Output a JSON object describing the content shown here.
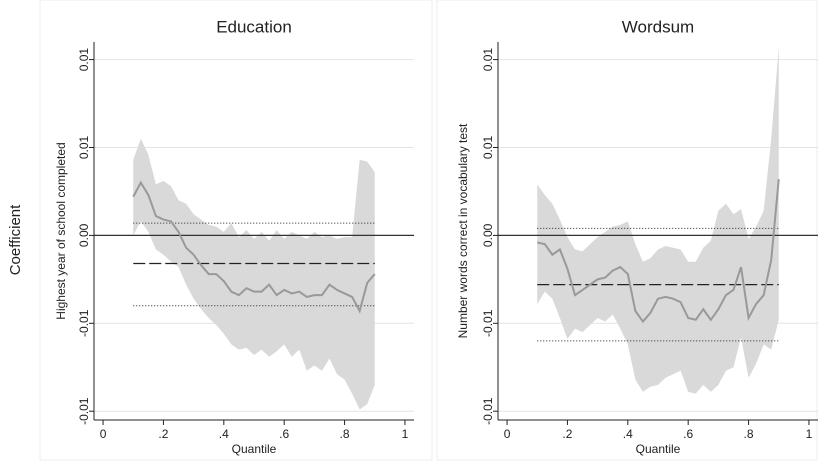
{
  "ylabel": "Coefficient",
  "chart_data": [
    {
      "type": "line",
      "title": "Education",
      "ylabel": "Highest year of school completed",
      "xlabel": "Quantile",
      "xlim": [
        -0.03,
        1.03
      ],
      "ylim": [
        -0.0105,
        0.011
      ],
      "xticks": [
        0,
        {
          "value": 0.2,
          "label": ".2"
        },
        {
          "value": 0.4,
          "label": ".4"
        },
        {
          "value": 0.6,
          "label": ".6"
        },
        {
          "value": 0.8,
          "label": ".8"
        },
        1
      ],
      "yticks": [
        -0.01,
        {
          "value": -0.005,
          "label": "-0.01"
        },
        {
          "value": 0,
          "label": "0.00"
        },
        {
          "value": 0.005,
          "label": "0.01"
        },
        0.01
      ],
      "grid": true,
      "refline": 0,
      "x": [
        0.1,
        0.125,
        0.15,
        0.175,
        0.2,
        0.225,
        0.25,
        0.275,
        0.3,
        0.325,
        0.35,
        0.375,
        0.4,
        0.425,
        0.45,
        0.475,
        0.5,
        0.525,
        0.55,
        0.575,
        0.6,
        0.625,
        0.65,
        0.675,
        0.7,
        0.725,
        0.75,
        0.775,
        0.8,
        0.825,
        0.85,
        0.875,
        0.9
      ],
      "band": {
        "color": "#d9d9d9",
        "upper": [
          0.0043,
          0.0055,
          0.0046,
          0.0029,
          0.0031,
          0.0028,
          0.002,
          0.0018,
          0.0012,
          0.0009,
          0.0006,
          0.0005,
          0.0002,
          0.0007,
          -0.0001,
          0.0003,
          -0.0002,
          0.0002,
          -0.0003,
          0.0003,
          -0.0002,
          0.0002,
          0,
          -0.0002,
          0.0002,
          -0.0001,
          0,
          -0.0002,
          -0.0001,
          -0.0001,
          0.0043,
          0.0042,
          0.0036
        ],
        "lower": [
          0,
          0.0008,
          0.0002,
          -0.0008,
          -0.0011,
          -0.0015,
          -0.0018,
          -0.0028,
          -0.0036,
          -0.0042,
          -0.0047,
          -0.0051,
          -0.0056,
          -0.0062,
          -0.0065,
          -0.0064,
          -0.0068,
          -0.0065,
          -0.0069,
          -0.0066,
          -0.0062,
          -0.0069,
          -0.0065,
          -0.0077,
          -0.0074,
          -0.0077,
          -0.007,
          -0.0079,
          -0.0082,
          -0.009,
          -0.0099,
          -0.0096,
          -0.0085
        ]
      },
      "series": [
        {
          "color": "#999999",
          "values": [
            0.0022,
            0.003,
            0.0023,
            0.0011,
            0.0009,
            0.0008,
            0.0002,
            -0.0007,
            -0.0011,
            -0.0017,
            -0.0022,
            -0.0022,
            -0.0026,
            -0.0032,
            -0.0034,
            -0.003,
            -0.0032,
            -0.0032,
            -0.0028,
            -0.0034,
            -0.0031,
            -0.0033,
            -0.0032,
            -0.0035,
            -0.0034,
            -0.0034,
            -0.0028,
            -0.0031,
            -0.0033,
            -0.0035,
            -0.0043,
            -0.0027,
            -0.0022
          ]
        }
      ],
      "hline_xlim": [
        0.1,
        0.9
      ],
      "hlines": [
        {
          "y": -0.0016,
          "style": "dashed"
        },
        {
          "y": 0.0007,
          "style": "dotted"
        },
        {
          "y": -0.004,
          "style": "dotted"
        }
      ]
    },
    {
      "type": "line",
      "title": "Wordsum",
      "ylabel": "Number words correct in vocabulary test",
      "xlabel": "Quantile",
      "xlim": [
        -0.03,
        1.03
      ],
      "ylim": [
        -0.0105,
        0.011
      ],
      "xticks": [
        0,
        {
          "value": 0.2,
          "label": ".2"
        },
        {
          "value": 0.4,
          "label": ".4"
        },
        {
          "value": 0.6,
          "label": ".6"
        },
        {
          "value": 0.8,
          "label": ".8"
        },
        1
      ],
      "yticks": [
        -0.01,
        {
          "value": -0.005,
          "label": "-0.01"
        },
        {
          "value": 0,
          "label": "0.00"
        },
        {
          "value": 0.005,
          "label": "0.01"
        },
        0.01
      ],
      "grid": true,
      "refline": 0,
      "x": [
        0.1,
        0.125,
        0.15,
        0.175,
        0.2,
        0.225,
        0.25,
        0.275,
        0.3,
        0.325,
        0.35,
        0.375,
        0.4,
        0.425,
        0.45,
        0.475,
        0.5,
        0.525,
        0.55,
        0.575,
        0.6,
        0.625,
        0.65,
        0.675,
        0.7,
        0.725,
        0.75,
        0.775,
        0.8,
        0.825,
        0.85,
        0.875,
        0.9
      ],
      "band": {
        "color": "#d9d9d9",
        "upper": [
          0.0029,
          0.0023,
          0.0018,
          0.0009,
          -0.0001,
          -0.0008,
          -0.0009,
          -0.0005,
          -0.0001,
          0.0002,
          0.0005,
          0.0006,
          0.0008,
          -0.0005,
          -0.0015,
          -0.0013,
          -0.0008,
          -0.0006,
          -0.0007,
          -0.0008,
          -0.0015,
          -0.0015,
          -0.0007,
          -0.0003,
          0.0014,
          0.0018,
          0.0012,
          0.0015,
          -0.0002,
          0.0005,
          0.0014,
          0.0055,
          0.0107
        ],
        "lower": [
          -0.0039,
          -0.0032,
          -0.0036,
          -0.0047,
          -0.0059,
          -0.0053,
          -0.0055,
          -0.0051,
          -0.0047,
          -0.0049,
          -0.0045,
          -0.0053,
          -0.0062,
          -0.0082,
          -0.0089,
          -0.0086,
          -0.0085,
          -0.0081,
          -0.0079,
          -0.0077,
          -0.0089,
          -0.009,
          -0.0085,
          -0.0089,
          -0.0085,
          -0.0077,
          -0.0075,
          -0.0058,
          -0.0081,
          -0.0073,
          -0.0062,
          -0.0065,
          -0.0048
        ]
      },
      "series": [
        {
          "color": "#999999",
          "values": [
            -0.0004,
            -0.0005,
            -0.0011,
            -0.0008,
            -0.0019,
            -0.0034,
            -0.0031,
            -0.0028,
            -0.0025,
            -0.0024,
            -0.002,
            -0.0018,
            -0.0022,
            -0.0043,
            -0.0049,
            -0.0044,
            -0.0036,
            -0.0035,
            -0.0036,
            -0.0038,
            -0.0047,
            -0.0048,
            -0.0042,
            -0.0048,
            -0.0042,
            -0.0034,
            -0.0031,
            -0.0018,
            -0.0047,
            -0.0039,
            -0.0034,
            -0.0014,
            0.0032
          ]
        }
      ],
      "hline_xlim": [
        0.1,
        0.9
      ],
      "hlines": [
        {
          "y": -0.0028,
          "style": "dashed"
        },
        {
          "y": 0.0004,
          "style": "dotted"
        },
        {
          "y": -0.006,
          "style": "dotted"
        }
      ]
    }
  ]
}
